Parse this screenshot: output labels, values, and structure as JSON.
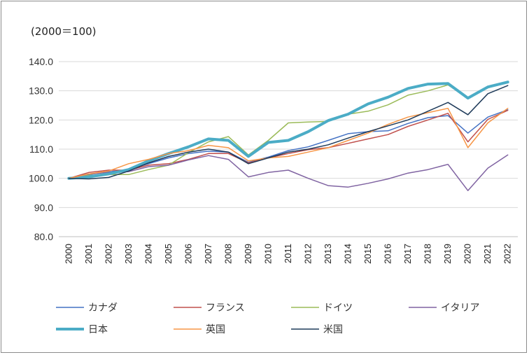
{
  "chart_data": {
    "type": "line",
    "unit_note": "(2000＝100)",
    "x": [
      "2000",
      "2001",
      "2002",
      "2003",
      "2004",
      "2005",
      "2006",
      "2007",
      "2008",
      "2009",
      "2010",
      "2011",
      "2012",
      "2013",
      "2014",
      "2015",
      "2016",
      "2017",
      "2018",
      "2019",
      "2020",
      "2021",
      "2022"
    ],
    "ylim": [
      80,
      140
    ],
    "yticks": [
      "80.0",
      "90.0",
      "100.0",
      "110.0",
      "120.0",
      "130.0",
      "140.0"
    ],
    "grid": "horizontal",
    "legend_position": "bottom",
    "series": [
      {
        "name": "カナダ",
        "color": "#4472c4",
        "width": 1.5,
        "values": [
          100.0,
          101.3,
          102.2,
          103.0,
          105.0,
          107.0,
          108.5,
          109.3,
          109.0,
          105.5,
          107.3,
          109.5,
          110.8,
          113.0,
          115.3,
          116.0,
          116.3,
          118.8,
          120.8,
          121.5,
          115.5,
          121.0,
          123.5
        ]
      },
      {
        "name": "フランス",
        "color": "#c0504d",
        "width": 1.5,
        "values": [
          100.0,
          102.0,
          102.8,
          102.8,
          104.5,
          105.0,
          106.5,
          108.5,
          108.5,
          105.3,
          107.0,
          108.5,
          109.8,
          110.5,
          112.0,
          113.5,
          115.0,
          117.8,
          120.0,
          122.3,
          112.5,
          120.2,
          123.3
        ]
      },
      {
        "name": "ドイツ",
        "color": "#9bbb59",
        "width": 1.5,
        "values": [
          100.0,
          101.0,
          101.3,
          101.3,
          103.0,
          104.5,
          108.8,
          112.5,
          114.3,
          108.0,
          113.0,
          119.0,
          119.3,
          119.5,
          122.0,
          123.0,
          125.2,
          128.5,
          130.0,
          132.0,
          127.5,
          131.0,
          133.0
        ]
      },
      {
        "name": "イタリア",
        "color": "#8064a2",
        "width": 1.5,
        "values": [
          100.0,
          101.5,
          102.0,
          102.3,
          104.0,
          104.5,
          106.3,
          107.8,
          106.5,
          100.5,
          102.0,
          102.8,
          100.0,
          97.5,
          97.0,
          98.3,
          99.8,
          101.8,
          103.0,
          104.8,
          95.8,
          103.5,
          108.0
        ]
      },
      {
        "name": "日本",
        "color": "#4bacc6",
        "width": 4,
        "values": [
          100.0,
          100.5,
          101.5,
          103.0,
          106.0,
          108.5,
          110.8,
          113.5,
          113.0,
          107.5,
          112.3,
          113.0,
          116.0,
          119.8,
          122.0,
          125.5,
          127.8,
          130.8,
          132.3,
          132.5,
          127.5,
          131.3,
          133.0
        ]
      },
      {
        "name": "英国",
        "color": "#f79646",
        "width": 1.5,
        "values": [
          100.0,
          101.5,
          102.5,
          105.0,
          106.5,
          108.5,
          109.5,
          111.3,
          110.5,
          106.0,
          107.0,
          107.5,
          109.0,
          110.5,
          113.0,
          115.5,
          118.5,
          121.0,
          122.5,
          124.0,
          110.5,
          119.0,
          124.0
        ]
      },
      {
        "name": "米国",
        "color": "#1f3b5a",
        "width": 1.5,
        "values": [
          100.0,
          99.8,
          100.3,
          102.5,
          105.3,
          107.5,
          109.0,
          110.0,
          109.0,
          105.0,
          107.0,
          109.0,
          110.0,
          111.5,
          113.8,
          116.0,
          118.0,
          120.0,
          123.0,
          126.0,
          121.8,
          129.0,
          131.8
        ]
      }
    ]
  }
}
